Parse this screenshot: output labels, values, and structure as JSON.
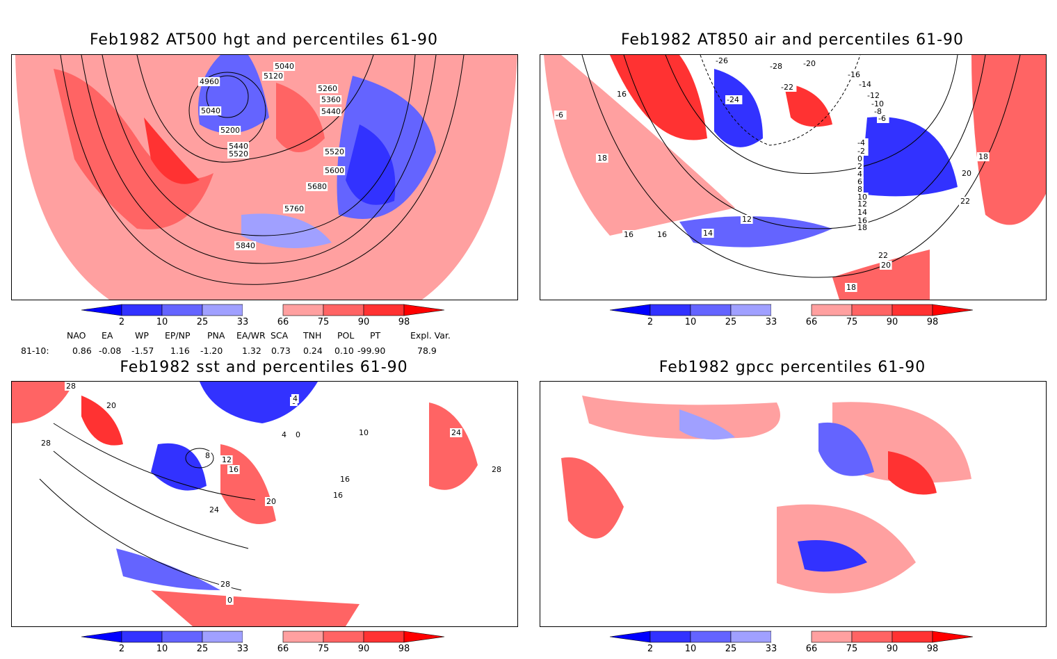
{
  "panels": [
    {
      "title": "Feb1982 AT500 hgt and percentiles 61-90",
      "labels": [
        "4960",
        "5040",
        "5120",
        "5040",
        "5200",
        "5260",
        "5360",
        "5440",
        "5440",
        "5520",
        "5520",
        "5600",
        "5680",
        "5760",
        "5840"
      ]
    },
    {
      "title": "Feb1982 AT850 air and percentiles 61-90",
      "labels": [
        "-26",
        "-28",
        "-20",
        "-16",
        "-22",
        "-24",
        "16",
        "-14",
        "-12",
        "-10",
        "-8",
        "-6",
        "-4",
        "-2",
        "0",
        "2",
        "4",
        "6",
        "8",
        "10",
        "12",
        "14",
        "16",
        "18",
        "16",
        "18",
        "20",
        "22",
        "22",
        "20",
        "18",
        "16",
        "14",
        "12",
        "-6",
        "18"
      ]
    },
    {
      "title": "Feb1982 sst and percentiles 61-90",
      "labels": [
        "28",
        "28",
        "20",
        "0",
        "4",
        "8",
        "12",
        "16",
        "20",
        "24",
        "28",
        "0",
        "4",
        "0",
        "16",
        "16",
        "24",
        "28",
        "10"
      ]
    },
    {
      "title": "Feb1982 gpcc percentiles 61-90",
      "labels": []
    }
  ],
  "colorbar": {
    "labels": [
      "2",
      "10",
      "25",
      "33",
      "66",
      "75",
      "90",
      "98"
    ],
    "colors": [
      "#0000ff",
      "#3232ff",
      "#6464ff",
      "#a0a0ff",
      "#ffffff",
      "#ffa0a0",
      "#ff6464",
      "#ff3232",
      "#ff0000"
    ]
  },
  "indices": {
    "headers": [
      "NAO",
      "EA",
      "WP",
      "EP/NP",
      "PNA",
      "EA/WR",
      "SCA",
      "TNH",
      "POL",
      "PT",
      "Expl. Var."
    ],
    "row_label": "81-10:",
    "values": [
      "0.86",
      "-0.08",
      "-1.57",
      "1.16",
      "-1.20",
      "1.32",
      "0.73",
      "0.24",
      "0.10",
      "-99.90",
      "78.9"
    ]
  }
}
